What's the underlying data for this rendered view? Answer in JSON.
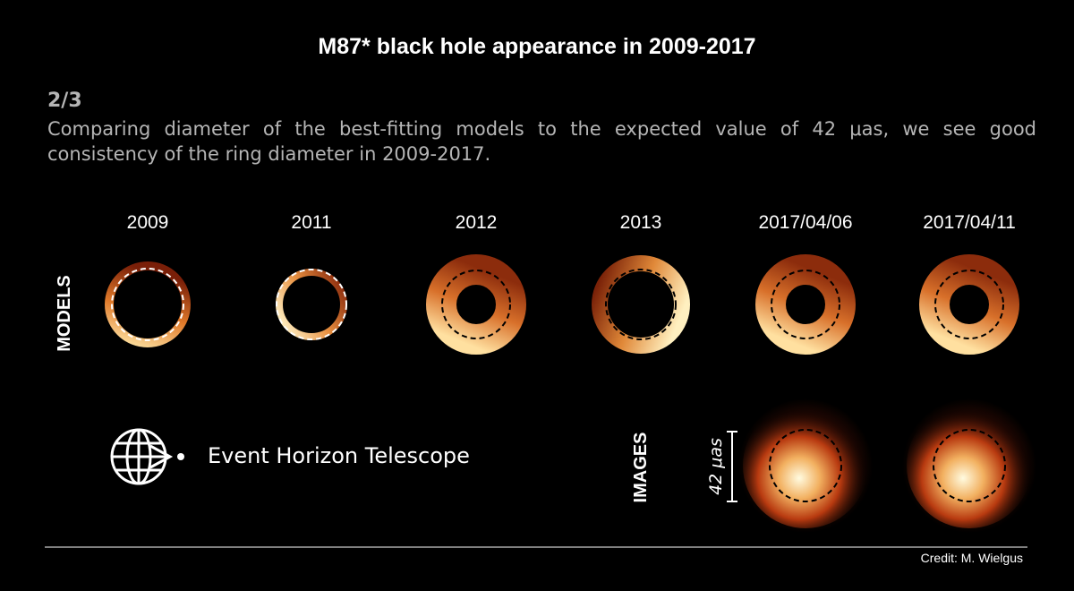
{
  "header": {
    "title": "M87* black hole appearance in 2009-2017",
    "step": "2/3",
    "description": "Comparing diameter of the best-fitting models to the expected value of 42 μas, we see good consistency of the ring diameter in 2009-2017."
  },
  "models": {
    "label": "MODELS",
    "epochs": [
      "2009",
      "2011",
      "2012",
      "2013",
      "2017/04/06",
      "2017/04/11"
    ]
  },
  "images": {
    "label": "IMAGES",
    "scale_label": "42 μas"
  },
  "logo": {
    "text": "Event Horizon Telescope"
  },
  "footer": {
    "credit": "Credit: M. Wielgus"
  }
}
